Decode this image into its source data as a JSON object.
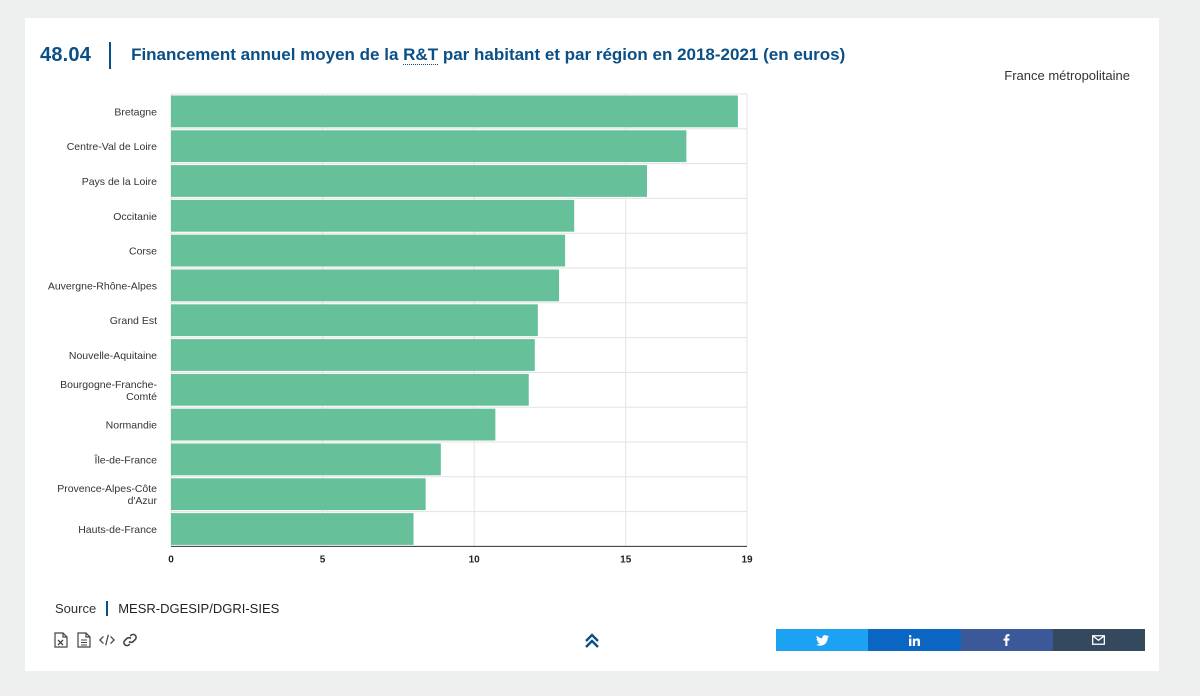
{
  "figure": {
    "number": "48.04",
    "title_pre": "Financement annuel moyen de la ",
    "title_abbr": "R&T",
    "title_post": " par habitant et par région en 2018-2021 (en euros)",
    "scope": "France métropolitaine"
  },
  "source": {
    "label": "Source",
    "value": "MESR-DGESIP/DGRI-SIES"
  },
  "tools": [
    {
      "name": "excel-export-icon"
    },
    {
      "name": "document-icon"
    },
    {
      "name": "embed-code-icon"
    },
    {
      "name": "link-icon"
    }
  ],
  "share": [
    {
      "name": "twitter-share-button",
      "icon": "twitter-icon",
      "color": "#1da1f2"
    },
    {
      "name": "linkedin-share-button",
      "icon": "linkedin-icon",
      "color": "#0a66c2"
    },
    {
      "name": "facebook-share-button",
      "icon": "facebook-icon",
      "color": "#3b5998"
    },
    {
      "name": "email-share-button",
      "icon": "mail-icon",
      "color": "#34495e"
    }
  ],
  "colors": {
    "accent": "#0a4f86",
    "bar": "#66c09a"
  },
  "chart_data": {
    "type": "bar",
    "orientation": "horizontal",
    "categories": [
      "Bretagne",
      "Centre-Val de Loire",
      "Pays de la Loire",
      "Occitanie",
      "Corse",
      "Auvergne-Rhône-Alpes",
      "Grand Est",
      "Nouvelle-Aquitaine",
      "Bourgogne-Franche-Comté",
      "Normandie",
      "Île-de-France",
      "Provence-Alpes-Côte d'Azur",
      "Hauts-de-France"
    ],
    "category_lines": [
      [
        "Bretagne"
      ],
      [
        "Centre-Val de Loire"
      ],
      [
        "Pays de la Loire"
      ],
      [
        "Occitanie"
      ],
      [
        "Corse"
      ],
      [
        "Auvergne-Rhône-Alpes"
      ],
      [
        "Grand Est"
      ],
      [
        "Nouvelle-Aquitaine"
      ],
      [
        "Bourgogne-Franche-",
        "Comté"
      ],
      [
        "Normandie"
      ],
      [
        "Île-de-France"
      ],
      [
        "Provence-Alpes-Côte",
        "d'Azur"
      ],
      [
        "Hauts-de-France"
      ]
    ],
    "values": [
      18.7,
      17.0,
      15.7,
      13.3,
      13.0,
      12.8,
      12.1,
      12.0,
      11.8,
      10.7,
      8.9,
      8.4,
      8.0
    ],
    "xlim": [
      0,
      19
    ],
    "xticks": [
      0,
      5,
      10,
      15,
      19
    ],
    "grid": true,
    "title": "Financement annuel moyen de la R&T par habitant et par région en 2018-2021 (en euros)"
  }
}
